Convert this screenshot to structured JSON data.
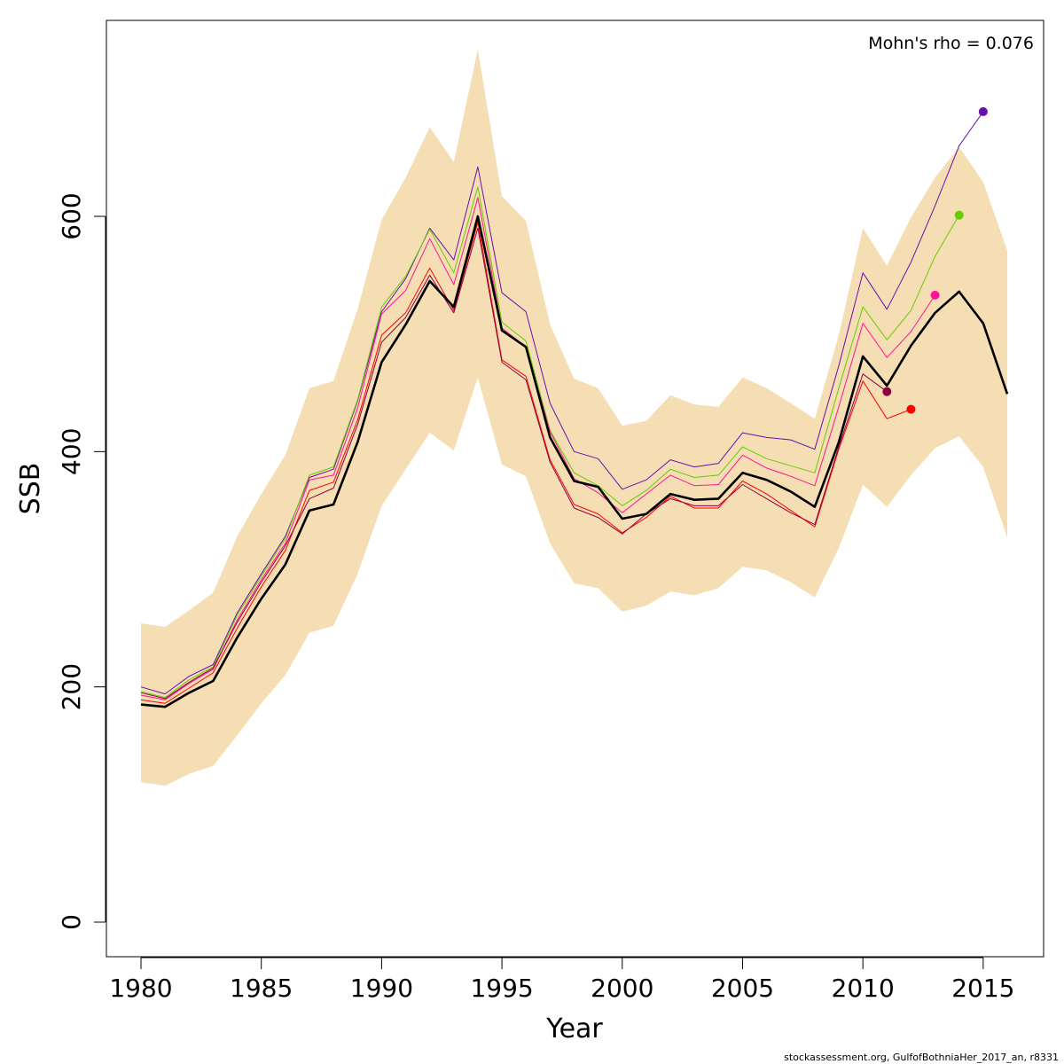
{
  "chart_data": {
    "type": "line",
    "title": "",
    "xlabel": "Year",
    "ylabel": "SSB",
    "xlim": [
      1978.6,
      1980.0,
      2016.0,
      2017.4
    ],
    "ylim": [
      -30,
      765
    ],
    "x_ticks": [
      1980,
      1985,
      1990,
      1995,
      2000,
      2005,
      2010,
      2015
    ],
    "y_ticks": [
      0,
      200,
      400,
      600
    ],
    "annotation": "Mohn's rho = 0.076",
    "footer": "stockassessment.org, GulfofBothniaHer_2017_an, r8331",
    "band_color": "#f5deb3",
    "years": [
      1980,
      1981,
      1982,
      1983,
      1984,
      1985,
      1986,
      1987,
      1988,
      1989,
      1990,
      1991,
      1992,
      1993,
      1994,
      1995,
      1996,
      1997,
      1998,
      1999,
      2000,
      2001,
      2002,
      2003,
      2004,
      2005,
      2006,
      2007,
      2008,
      2009,
      2010,
      2011,
      2012,
      2013,
      2014,
      2015,
      2016
    ],
    "band_upper": [
      254,
      251,
      265,
      280,
      328,
      364,
      397,
      454,
      460,
      521,
      597,
      633,
      676,
      646,
      742,
      617,
      596,
      508,
      462,
      454,
      422,
      426,
      448,
      440,
      438,
      463,
      454,
      441,
      428,
      499,
      590,
      558,
      599,
      633,
      659,
      629,
      571
    ],
    "band_lower": [
      119,
      116,
      126,
      133,
      159,
      186,
      210,
      246,
      252,
      296,
      354,
      385,
      416,
      401,
      463,
      389,
      379,
      322,
      288,
      284,
      264,
      269,
      281,
      278,
      284,
      302,
      299,
      289,
      276,
      318,
      372,
      353,
      380,
      403,
      413,
      387,
      327
    ],
    "series": [
      {
        "color": "#000000",
        "width": 2.6,
        "start": 1980,
        "values": [
          185,
          183,
          195,
          205,
          242,
          275,
          304,
          350,
          355,
          408,
          476,
          508,
          545,
          523,
          600,
          503,
          489,
          412,
          375,
          370,
          343,
          347,
          364,
          359,
          360,
          382,
          376,
          366,
          353,
          408,
          481,
          456,
          490,
          518,
          536,
          509,
          449
        ]
      },
      {
        "color": "#6a0dad",
        "width": 1,
        "start": 1980,
        "values": [
          200,
          194,
          209,
          219,
          263,
          296,
          328,
          378,
          385,
          443,
          519,
          547,
          590,
          563,
          642,
          535,
          519,
          441,
          400,
          394,
          368,
          376,
          393,
          387,
          390,
          416,
          412,
          410,
          402,
          473,
          552,
          521,
          561,
          609,
          660,
          689
        ],
        "end_dot": true
      },
      {
        "color": "#66cc00",
        "width": 1,
        "start": 1980,
        "values": [
          196,
          191,
          206,
          217,
          261,
          294,
          326,
          380,
          387,
          444,
          523,
          549,
          589,
          552,
          625,
          510,
          494,
          418,
          382,
          371,
          354,
          367,
          385,
          378,
          380,
          404,
          394,
          388,
          382,
          454,
          523,
          495,
          520,
          566,
          601
        ],
        "end_dot": true
      },
      {
        "color": "#ff1493",
        "width": 1,
        "start": 1980,
        "values": [
          193,
          189,
          203,
          215,
          257,
          291,
          322,
          376,
          380,
          437,
          517,
          537,
          581,
          542,
          616,
          505,
          489,
          417,
          377,
          365,
          348,
          364,
          380,
          371,
          372,
          397,
          386,
          379,
          371,
          438,
          509,
          480,
          502,
          533
        ],
        "end_dot": true
      },
      {
        "color": "#ff0000",
        "width": 1,
        "start": 1980,
        "values": [
          189,
          186,
          199,
          212,
          250,
          285,
          316,
          367,
          374,
          427,
          499,
          518,
          556,
          520,
          595,
          478,
          464,
          393,
          355,
          347,
          331,
          344,
          362,
          352,
          352,
          375,
          364,
          350,
          336,
          402,
          460,
          428,
          436
        ],
        "end_dot": true
      },
      {
        "color": "#8b0045",
        "width": 1,
        "start": 1980,
        "values": [
          195,
          190,
          204,
          216,
          255,
          289,
          320,
          360,
          369,
          423,
          493,
          514,
          550,
          518,
          590,
          476,
          461,
          391,
          352,
          344,
          330,
          347,
          360,
          354,
          354,
          372,
          360,
          348,
          338,
          404,
          466,
          451
        ],
        "end_dot": true
      }
    ]
  }
}
